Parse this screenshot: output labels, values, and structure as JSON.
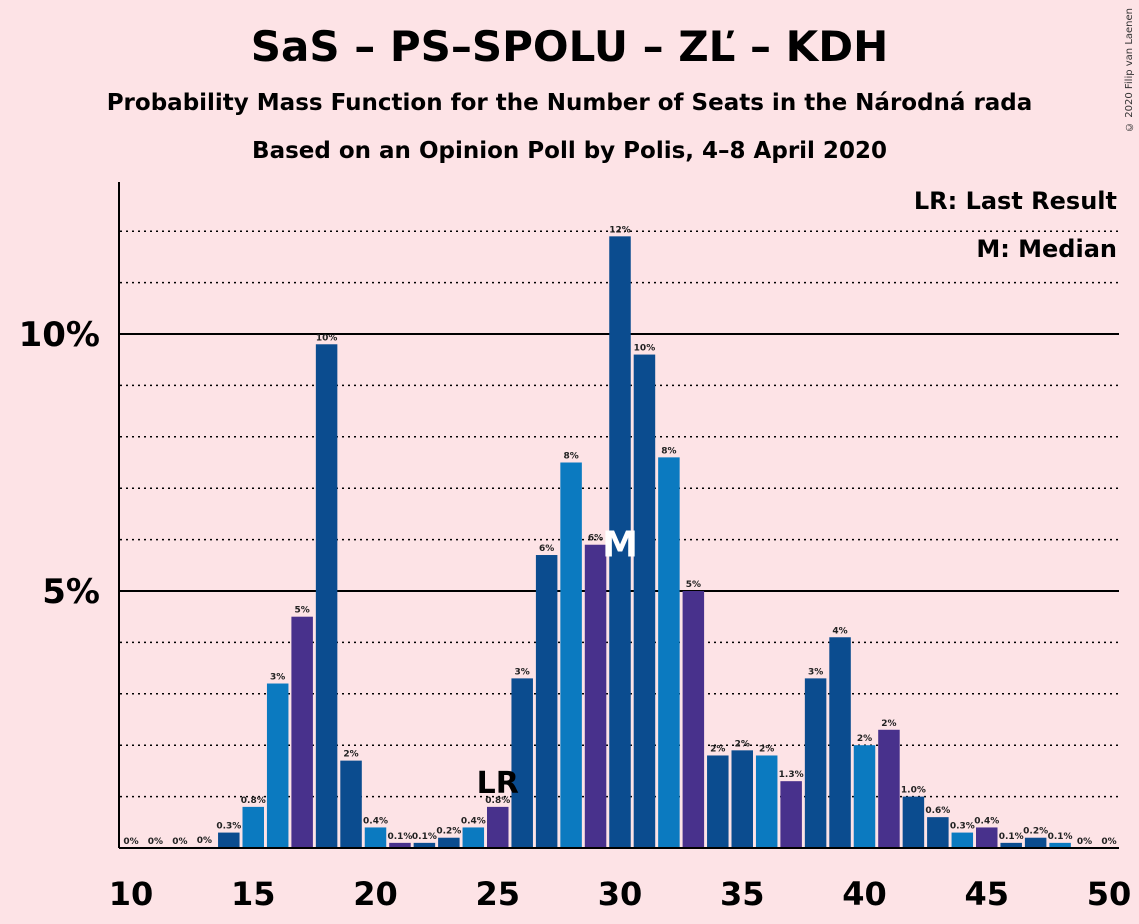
{
  "header": {
    "title": "SaS – PS–SPOLU – ZĽ – KDH",
    "subtitle1": "Probability Mass Function for the Number of Seats in the Národná rada",
    "subtitle2": "Based on an Opinion Poll by Polis, 4–8 April 2020",
    "copyright": "© 2020 Filip van Laenen"
  },
  "legend": {
    "lr": "LR: Last Result",
    "median": "M: Median"
  },
  "chart_data": {
    "type": "bar",
    "x": [
      10,
      11,
      12,
      13,
      14,
      15,
      16,
      17,
      18,
      19,
      20,
      21,
      22,
      23,
      24,
      25,
      26,
      27,
      28,
      29,
      30,
      31,
      32,
      33,
      34,
      35,
      36,
      37,
      38,
      39,
      40,
      41,
      42,
      43,
      44,
      45,
      46,
      47,
      48,
      49,
      50
    ],
    "values": [
      0,
      0,
      0,
      0.02,
      0.3,
      0.8,
      3.2,
      4.5,
      9.8,
      1.7,
      0.4,
      0.1,
      0.1,
      0.2,
      0.4,
      0.8,
      3.3,
      5.7,
      7.5,
      5.9,
      11.9,
      9.6,
      7.6,
      5.0,
      1.8,
      1.9,
      1.8,
      1.3,
      3.3,
      4.1,
      2.0,
      2.3,
      1.0,
      0.6,
      0.3,
      0.4,
      0.1,
      0.2,
      0.1,
      0,
      0
    ],
    "labels": [
      "0%",
      "0%",
      "0%",
      "0%",
      "0.3%",
      "0.8%",
      "3%",
      "5%",
      "10%",
      "2%",
      "0.4%",
      "0.1%",
      "0.1%",
      "0.2%",
      "0.4%",
      "0.8%",
      "3%",
      "6%",
      "8%",
      "6%",
      "12%",
      "10%",
      "8%",
      "5%",
      "2%",
      "2%",
      "2%",
      "1.3%",
      "3%",
      "4%",
      "2%",
      "2%",
      "1.0%",
      "0.6%",
      "0.3%",
      "0.4%",
      "0.1%",
      "0.2%",
      "0.1%",
      "0%",
      "0%"
    ],
    "colors": [
      "#0B4C8F",
      "#0B4C8F",
      "#0B4C8F",
      "#0B4C8F",
      "#0B4C8F",
      "#0B7AC0",
      "#0B7AC0",
      "#48318C",
      "#0B4C8F",
      "#0B4C8F",
      "#0B7AC0",
      "#48318C",
      "#0B4C8F",
      "#0B4C8F",
      "#0B7AC0",
      "#48318C",
      "#0B4C8F",
      "#0B4C8F",
      "#0B7AC0",
      "#48318C",
      "#0B4C8F",
      "#0B4C8F",
      "#0B7AC0",
      "#48318C",
      "#0B4C8F",
      "#0B4C8F",
      "#0B7AC0",
      "#48318C",
      "#0B4C8F",
      "#0B4C8F",
      "#0B7AC0",
      "#48318C",
      "#0B4C8F",
      "#0B4C8F",
      "#0B7AC0",
      "#48318C",
      "#0B4C8F",
      "#0B4C8F",
      "#0B7AC0",
      "#48318C",
      "#0B4C8F"
    ],
    "xticks": [
      10,
      15,
      20,
      25,
      30,
      35,
      40,
      45,
      50
    ],
    "yticks": [
      {
        "value": 5,
        "label": "5%"
      },
      {
        "value": 10,
        "label": "10%"
      }
    ],
    "ylim": [
      0,
      13
    ],
    "grid": "dotted every 1%",
    "last_result": {
      "seat": 25,
      "label": "LR"
    },
    "median": {
      "seat": 30,
      "label": "M"
    },
    "legend_position": "top-right"
  }
}
